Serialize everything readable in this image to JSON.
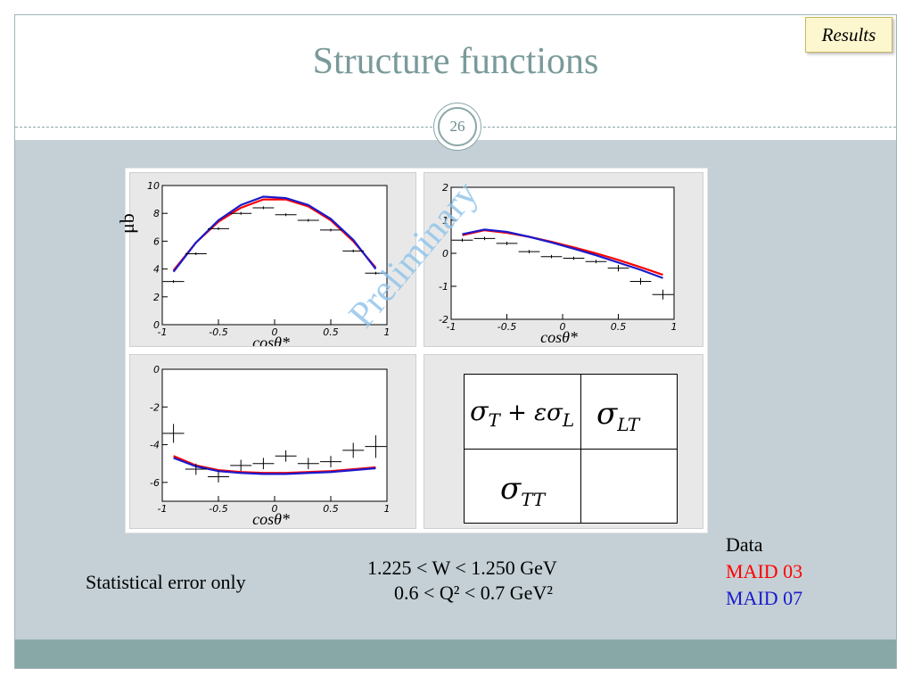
{
  "slide": {
    "title": "Structure functions",
    "page_number": "26",
    "section_tag": "Results",
    "watermark": "Preliminary",
    "y_unit_label": "μb",
    "note_statistical": "Statistical error only",
    "kinematics_w": "1.225 < W < 1.250 GeV",
    "kinematics_q2": "0.6 < Q² < 0.7 GeV²",
    "legend": {
      "data": "Data",
      "maid03": "MAID 03",
      "maid07": "MAID 07"
    },
    "legend_table": {
      "cell_tl_main": "σ",
      "cell_tl_sub1": "T",
      "cell_tl_mid": " + εσ",
      "cell_tl_sub2": "L",
      "cell_tr_main": "σ",
      "cell_tr_sub": "LT",
      "cell_bl_main": "σ",
      "cell_bl_sub": "TT"
    },
    "colors": {
      "maid03": "#ff0000",
      "maid07": "#1a1acc",
      "data": "#000000"
    }
  },
  "chart_data": [
    {
      "type": "scatter",
      "name": "sigma_T + eps sigma_L",
      "xlabel": "cosθ*",
      "ylabel": "μb",
      "xlim": [
        -1,
        1
      ],
      "ylim": [
        0,
        10
      ],
      "xticks": [
        "-1",
        "-0.5",
        "0",
        "0.5",
        "1"
      ],
      "yticks": [
        "0",
        "2",
        "4",
        "6",
        "8",
        "10"
      ],
      "data": {
        "x": [
          -0.9,
          -0.7,
          -0.5,
          -0.3,
          -0.1,
          0.1,
          0.3,
          0.5,
          0.7,
          0.9
        ],
        "y": [
          3.1,
          5.1,
          6.9,
          8.0,
          8.4,
          7.9,
          7.5,
          6.8,
          5.3,
          3.7
        ],
        "yerr": [
          0.1,
          0.1,
          0.1,
          0.1,
          0.1,
          0.1,
          0.1,
          0.1,
          0.1,
          0.1
        ]
      },
      "series": [
        {
          "name": "MAID 03",
          "x": [
            -0.9,
            -0.7,
            -0.5,
            -0.3,
            -0.1,
            0.1,
            0.3,
            0.5,
            0.7,
            0.9
          ],
          "y": [
            3.9,
            5.9,
            7.4,
            8.4,
            9.0,
            9.0,
            8.5,
            7.5,
            6.0,
            4.1
          ]
        },
        {
          "name": "MAID 07",
          "x": [
            -0.9,
            -0.7,
            -0.5,
            -0.3,
            -0.1,
            0.1,
            0.3,
            0.5,
            0.7,
            0.9
          ],
          "y": [
            3.8,
            5.9,
            7.5,
            8.6,
            9.2,
            9.1,
            8.6,
            7.6,
            6.1,
            4.0
          ]
        }
      ]
    },
    {
      "type": "scatter",
      "name": "sigma_LT",
      "xlabel": "cosθ*",
      "xlim": [
        -1,
        1
      ],
      "ylim": [
        -2,
        2
      ],
      "xticks": [
        "-1",
        "-0.5",
        "0",
        "0.5",
        "1"
      ],
      "yticks": [
        "-2",
        "-1",
        "0",
        "1",
        "2"
      ],
      "data": {
        "x": [
          -0.9,
          -0.7,
          -0.5,
          -0.3,
          -0.1,
          0.1,
          0.3,
          0.5,
          0.7,
          0.9
        ],
        "y": [
          0.4,
          0.45,
          0.3,
          0.05,
          -0.1,
          -0.15,
          -0.25,
          -0.45,
          -0.85,
          -1.25
        ],
        "yerr": [
          0.05,
          0.05,
          0.05,
          0.05,
          0.05,
          0.05,
          0.05,
          0.1,
          0.1,
          0.15
        ]
      },
      "series": [
        {
          "name": "MAID 03",
          "x": [
            -0.9,
            -0.7,
            -0.5,
            -0.3,
            -0.1,
            0.1,
            0.3,
            0.5,
            0.7,
            0.9
          ],
          "y": [
            0.55,
            0.7,
            0.62,
            0.5,
            0.35,
            0.18,
            0.0,
            -0.2,
            -0.42,
            -0.65
          ]
        },
        {
          "name": "MAID 07",
          "x": [
            -0.9,
            -0.7,
            -0.5,
            -0.3,
            -0.1,
            0.1,
            0.3,
            0.5,
            0.7,
            0.9
          ],
          "y": [
            0.58,
            0.72,
            0.65,
            0.5,
            0.33,
            0.14,
            -0.06,
            -0.28,
            -0.5,
            -0.75
          ]
        }
      ]
    },
    {
      "type": "scatter",
      "name": "sigma_TT",
      "xlabel": "cosθ*",
      "xlim": [
        -1,
        1
      ],
      "ylim": [
        -7,
        0
      ],
      "xticks": [
        "-1",
        "-0.5",
        "0",
        "0.5",
        "1"
      ],
      "yticks": [
        "-6",
        "-4",
        "-2",
        "0"
      ],
      "data": {
        "x": [
          -0.9,
          -0.7,
          -0.5,
          -0.3,
          -0.1,
          0.1,
          0.3,
          0.5,
          0.7,
          0.9
        ],
        "y": [
          -3.4,
          -5.3,
          -5.7,
          -5.1,
          -5.0,
          -4.6,
          -5.0,
          -4.9,
          -4.3,
          -4.1
        ],
        "yerr": [
          0.5,
          0.3,
          0.3,
          0.3,
          0.3,
          0.3,
          0.3,
          0.3,
          0.4,
          0.6
        ]
      },
      "series": [
        {
          "name": "MAID 03",
          "x": [
            -0.9,
            -0.7,
            -0.5,
            -0.3,
            -0.1,
            0.1,
            0.3,
            0.5,
            0.7,
            0.9
          ],
          "y": [
            -4.6,
            -5.1,
            -5.35,
            -5.45,
            -5.5,
            -5.5,
            -5.45,
            -5.4,
            -5.3,
            -5.2
          ]
        },
        {
          "name": "MAID 07",
          "x": [
            -0.9,
            -0.7,
            -0.5,
            -0.3,
            -0.1,
            0.1,
            0.3,
            0.5,
            0.7,
            0.9
          ],
          "y": [
            -4.7,
            -5.15,
            -5.4,
            -5.5,
            -5.55,
            -5.55,
            -5.5,
            -5.45,
            -5.35,
            -5.25
          ]
        }
      ]
    }
  ]
}
